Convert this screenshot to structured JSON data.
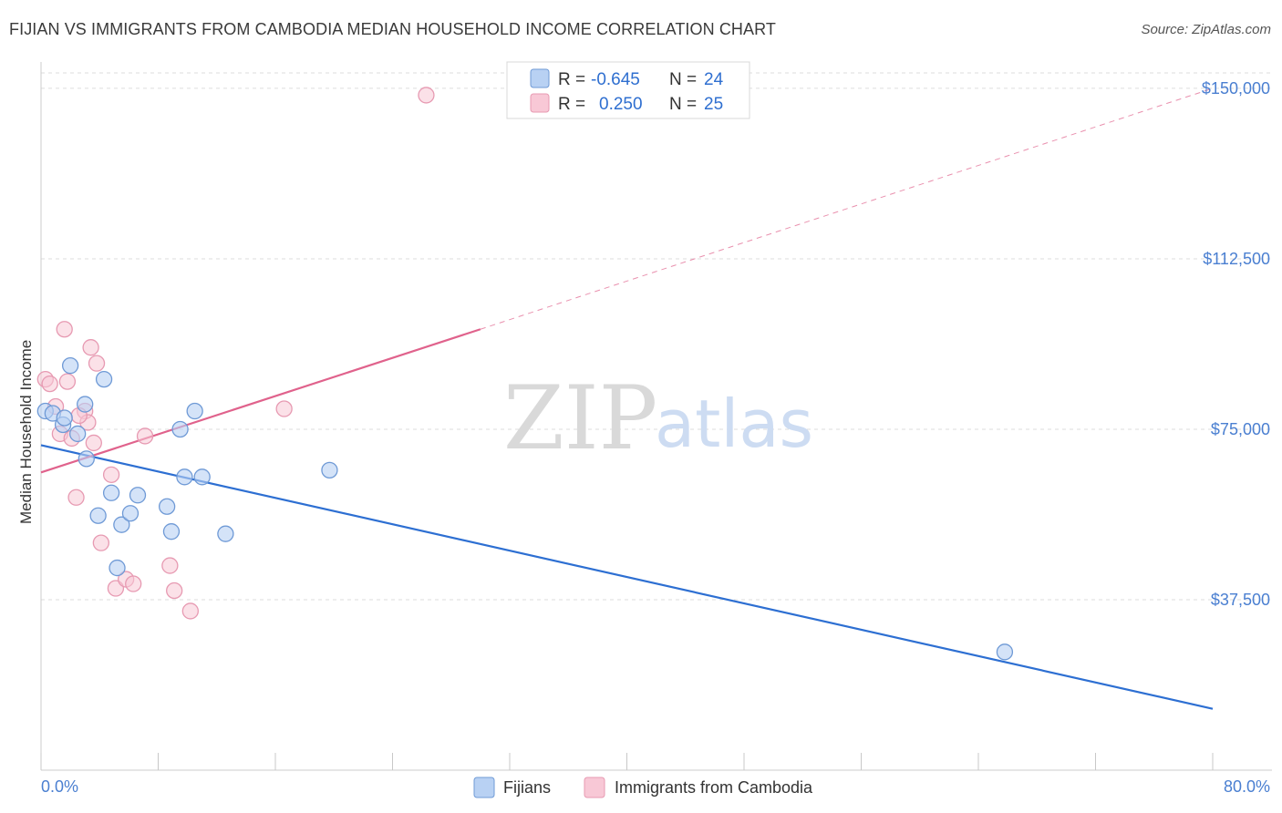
{
  "header": {
    "title": "FIJIAN VS IMMIGRANTS FROM CAMBODIA MEDIAN HOUSEHOLD INCOME CORRELATION CHART",
    "source": "Source: ZipAtlas.com"
  },
  "watermark": {
    "zip": "ZIP",
    "atlas": "atlas"
  },
  "colors": {
    "blue_fill": "#b8d1f3",
    "blue_stroke": "#6f9ad6",
    "blue_line": "#2d6fd2",
    "pink_fill": "#f8c8d6",
    "pink_stroke": "#e79ab2",
    "pink_line": "#e0628c",
    "grid": "#dddddd",
    "axis_text": "#4a7fd1"
  },
  "legend": {
    "fijians": {
      "r_label": "R =",
      "r_value": "-0.645",
      "n_label": "N =",
      "n_value": "24"
    },
    "cambodia": {
      "r_label": "R =",
      "r_value": "0.250",
      "n_label": "N =",
      "n_value": "25"
    }
  },
  "chart_data": {
    "type": "scatter",
    "title": "FIJIAN VS IMMIGRANTS FROM CAMBODIA MEDIAN HOUSEHOLD INCOME CORRELATION CHART",
    "xlabel": "",
    "ylabel": "Median Household Income",
    "xlim": [
      0,
      80
    ],
    "ylim": [
      0,
      155000
    ],
    "x_tick_labels": [
      "0.0%",
      "80.0%"
    ],
    "y_ticks": [
      37500,
      75000,
      112500,
      150000
    ],
    "y_tick_labels": [
      "$37,500",
      "$75,000",
      "$112,500",
      "$150,000"
    ],
    "series": [
      {
        "name": "Fijians",
        "points": [
          [
            0.3,
            79000
          ],
          [
            0.8,
            78500
          ],
          [
            1.5,
            76000
          ],
          [
            1.6,
            77500
          ],
          [
            2.0,
            89000
          ],
          [
            2.5,
            74000
          ],
          [
            3.1,
            68500
          ],
          [
            3.0,
            80500
          ],
          [
            4.3,
            86000
          ],
          [
            3.9,
            56000
          ],
          [
            4.8,
            61000
          ],
          [
            5.2,
            44500
          ],
          [
            5.5,
            54000
          ],
          [
            6.1,
            56500
          ],
          [
            6.6,
            60500
          ],
          [
            8.6,
            58000
          ],
          [
            8.9,
            52500
          ],
          [
            9.5,
            75000
          ],
          [
            9.8,
            64500
          ],
          [
            10.5,
            79000
          ],
          [
            11.0,
            64500
          ],
          [
            12.6,
            52000
          ],
          [
            19.7,
            66000
          ],
          [
            65.8,
            26000
          ]
        ],
        "trend": {
          "x": [
            0,
            80
          ],
          "y": [
            71500,
            13500
          ]
        }
      },
      {
        "name": "Immigrants from Cambodia",
        "points": [
          [
            0.3,
            86000
          ],
          [
            0.6,
            85000
          ],
          [
            1.0,
            80000
          ],
          [
            1.3,
            74000
          ],
          [
            1.6,
            97000
          ],
          [
            1.8,
            85500
          ],
          [
            2.1,
            73000
          ],
          [
            2.4,
            60000
          ],
          [
            3.0,
            79000
          ],
          [
            3.2,
            76500
          ],
          [
            3.4,
            93000
          ],
          [
            3.6,
            72000
          ],
          [
            3.8,
            89500
          ],
          [
            4.1,
            50000
          ],
          [
            4.8,
            65000
          ],
          [
            5.1,
            40000
          ],
          [
            5.8,
            42000
          ],
          [
            6.3,
            41000
          ],
          [
            7.1,
            73500
          ],
          [
            8.8,
            45000
          ],
          [
            9.1,
            39500
          ],
          [
            10.2,
            35000
          ],
          [
            16.6,
            79500
          ],
          [
            26.3,
            148500
          ],
          [
            2.6,
            78000
          ]
        ],
        "trend_solid": {
          "x": [
            0,
            30
          ],
          "y": [
            65500,
            97000
          ]
        },
        "trend_dashed": {
          "x": [
            30,
            80
          ],
          "y": [
            97000,
            150000
          ]
        }
      }
    ],
    "legend": [
      "Fijians",
      "Immigrants from Cambodia"
    ]
  }
}
